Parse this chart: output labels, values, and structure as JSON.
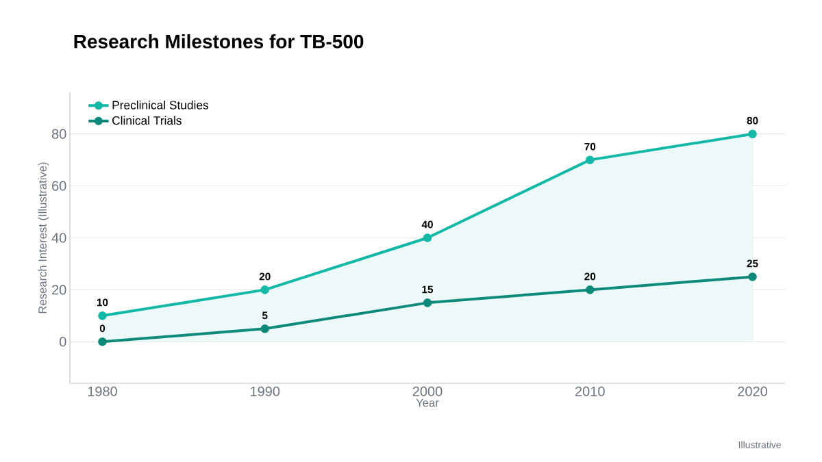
{
  "chart_data": {
    "type": "line",
    "title": "Research Milestones for TB-500",
    "xlabel": "Year",
    "ylabel": "Research Interest (Illustrative)",
    "x": [
      1980,
      1990,
      2000,
      2010,
      2020
    ],
    "series": [
      {
        "name": "Preclinical Studies",
        "type": "area",
        "color": "#14b8a6",
        "values": [
          10,
          20,
          40,
          70,
          80
        ]
      },
      {
        "name": "Clinical Trials",
        "type": "line",
        "color": "#0f8a7a",
        "values": [
          0,
          5,
          15,
          20,
          25
        ]
      }
    ],
    "xlim": [
      1978,
      2022
    ],
    "ylim": [
      -16,
      96
    ],
    "xticks": [
      1980,
      1990,
      2000,
      2010,
      2020
    ],
    "yticks": [
      0,
      20,
      40,
      60,
      80
    ],
    "grid": "y",
    "legend": "top left",
    "marker": "circle",
    "line_style": "solid",
    "data_labels": true,
    "annotations": [
      "Illustrative"
    ]
  }
}
